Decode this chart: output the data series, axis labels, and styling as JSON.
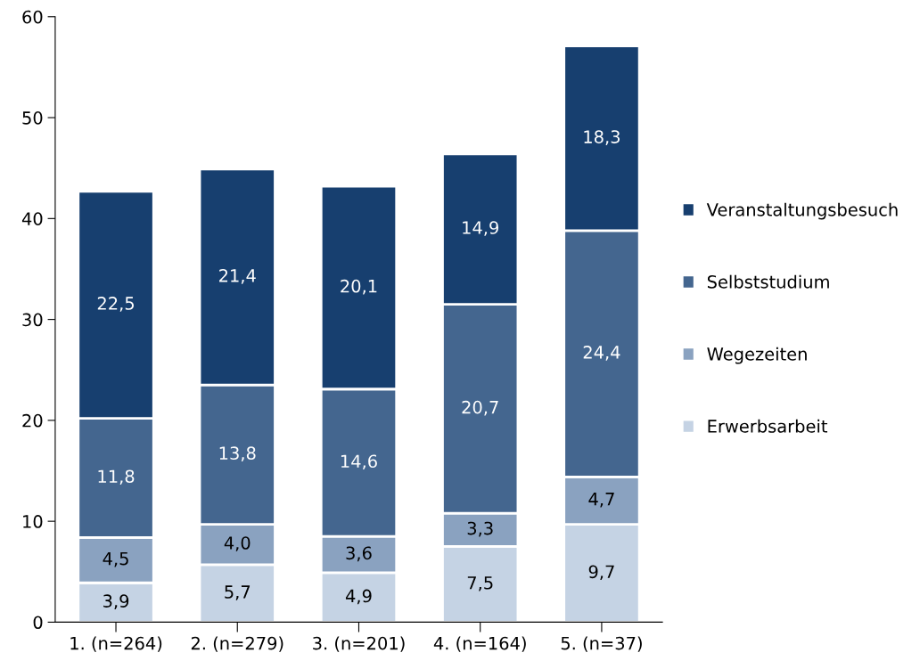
{
  "chart_data": {
    "type": "bar",
    "stacked": true,
    "categories": [
      "1. (n=264)",
      "2. (n=279)",
      "3. (n=201)",
      "4. (n=164)",
      "5. (n=37)"
    ],
    "series": [
      {
        "name": "Erwerbsarbeit",
        "color": "#c5d3e4",
        "values": [
          3.9,
          5.7,
          4.9,
          7.5,
          9.7
        ],
        "value_labels": [
          "3,9",
          "5,7",
          "4,9",
          "7,5",
          "9,7"
        ]
      },
      {
        "name": "Wegezeiten",
        "color": "#8aa2c0",
        "values": [
          4.5,
          4.0,
          3.6,
          3.3,
          4.7
        ],
        "value_labels": [
          "4,5",
          "4,0",
          "3,6",
          "3,3",
          "4,7"
        ]
      },
      {
        "name": "Selbststudium",
        "color": "#44668f",
        "values": [
          11.8,
          13.8,
          14.6,
          20.7,
          24.4
        ],
        "value_labels": [
          "11,8",
          "13,8",
          "14,6",
          "20,7",
          "24,4"
        ]
      },
      {
        "name": "Veranstaltungsbesuch",
        "color": "#173f6f",
        "values": [
          22.5,
          21.4,
          20.1,
          14.9,
          18.3
        ],
        "value_labels": [
          "22,5",
          "21,4",
          "20,1",
          "14,9",
          "18,3"
        ]
      }
    ],
    "ylim": [
      0,
      60
    ],
    "yticks": [
      0,
      10,
      20,
      30,
      40,
      50,
      60
    ],
    "grid": false,
    "legend": "right"
  }
}
